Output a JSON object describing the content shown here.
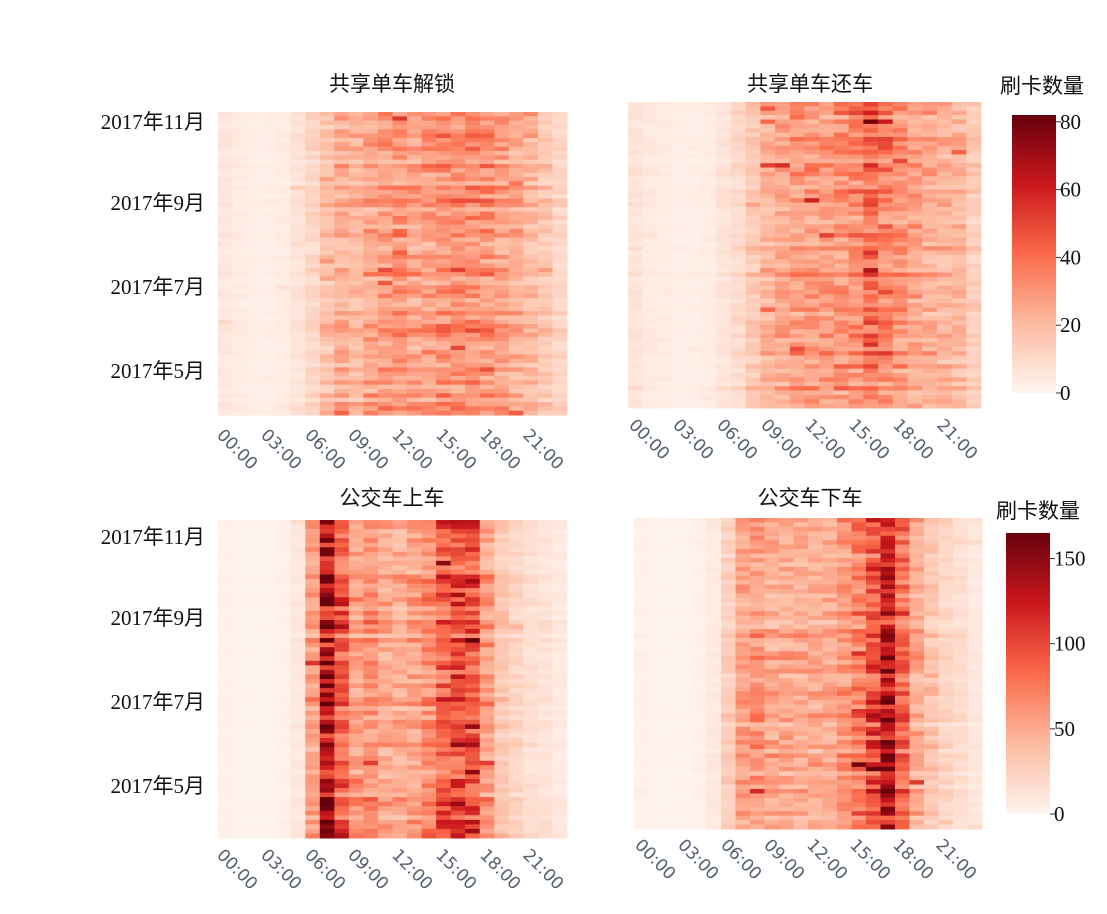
{
  "chart_data": [
    {
      "type": "heatmap",
      "title": "共享单车解锁",
      "xticks": [
        "00:00",
        "03:00",
        "06:00",
        "09:00",
        "12:00",
        "15:00",
        "18:00",
        "21:00"
      ],
      "yticks": [
        "2017年11月",
        "2017年9月",
        "2017年7月",
        "2017年5月"
      ],
      "hour_profile": [
        0.06,
        0.04,
        0.03,
        0.03,
        0.04,
        0.08,
        0.14,
        0.22,
        0.3,
        0.26,
        0.33,
        0.36,
        0.38,
        0.34,
        0.36,
        0.38,
        0.4,
        0.4,
        0.38,
        0.34,
        0.3,
        0.26,
        0.2,
        0.14
      ],
      "colorbar": "cb1"
    },
    {
      "type": "heatmap",
      "title": "共享单车还车",
      "xticks": [
        "00:00",
        "03:00",
        "06:00",
        "09:00",
        "12:00",
        "15:00",
        "18:00",
        "21:00"
      ],
      "yticks": [],
      "hour_profile": [
        0.08,
        0.05,
        0.04,
        0.03,
        0.03,
        0.04,
        0.08,
        0.12,
        0.2,
        0.28,
        0.33,
        0.35,
        0.36,
        0.36,
        0.38,
        0.42,
        0.5,
        0.44,
        0.38,
        0.34,
        0.3,
        0.28,
        0.26,
        0.18
      ],
      "colorbar": "cb1"
    },
    {
      "type": "heatmap",
      "title": "公交车上车",
      "xticks": [
        "00:00",
        "03:00",
        "06:00",
        "09:00",
        "12:00",
        "15:00",
        "18:00",
        "21:00"
      ],
      "yticks": [
        "2017年11月",
        "2017年9月",
        "2017年7月",
        "2017年5月"
      ],
      "hour_profile": [
        0.02,
        0.01,
        0.01,
        0.01,
        0.02,
        0.06,
        0.34,
        0.82,
        0.58,
        0.36,
        0.38,
        0.32,
        0.3,
        0.34,
        0.4,
        0.56,
        0.62,
        0.6,
        0.36,
        0.2,
        0.14,
        0.1,
        0.08,
        0.05
      ],
      "colorbar": "cb2"
    },
    {
      "type": "heatmap",
      "title": "公交车下车",
      "xticks": [
        "00:00",
        "03:00",
        "06:00",
        "09:00",
        "12:00",
        "15:00",
        "18:00",
        "21:00"
      ],
      "yticks": [],
      "hour_profile": [
        0.02,
        0.01,
        0.01,
        0.01,
        0.02,
        0.05,
        0.16,
        0.32,
        0.36,
        0.3,
        0.3,
        0.3,
        0.3,
        0.3,
        0.36,
        0.44,
        0.58,
        0.82,
        0.5,
        0.3,
        0.2,
        0.14,
        0.1,
        0.06
      ],
      "colorbar": "cb2"
    }
  ],
  "colorbars": {
    "cb1": {
      "title": "刷卡数量",
      "min": 0,
      "max": 82,
      "ticks": [
        0,
        20,
        40,
        60,
        80
      ]
    },
    "cb2": {
      "title": "刷卡数量",
      "min": 0,
      "max": 165,
      "ticks": [
        0,
        50,
        100,
        150
      ]
    }
  },
  "colors": [
    "#fff5f0",
    "#fcbba1",
    "#fb6a4a",
    "#cb181d",
    "#67000d"
  ]
}
